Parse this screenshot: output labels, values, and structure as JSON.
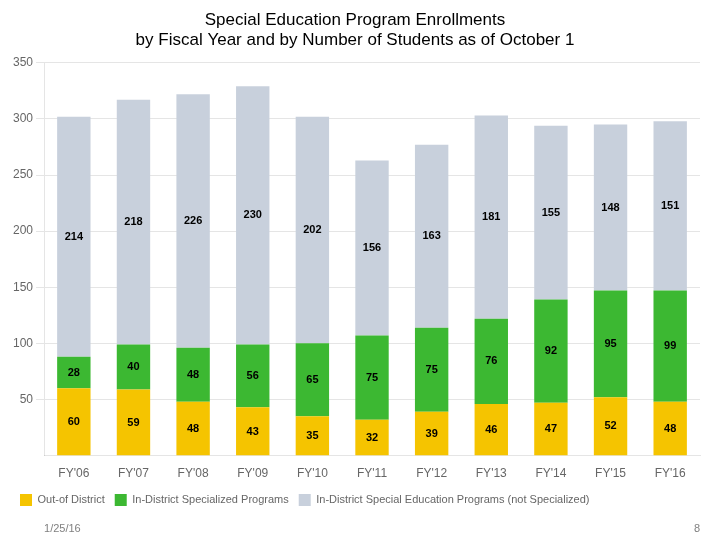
{
  "chart_data": {
    "type": "bar",
    "title": "Special Education Program Enrollments\nby Fiscal Year and by Number of Students as of October 1",
    "categories": [
      "FY'06",
      "FY'07",
      "FY'08",
      "FY'09",
      "FY'10",
      "FY'11",
      "FY'12",
      "FY'13",
      "FY'14",
      "FY'15",
      "FY'16"
    ],
    "series": [
      {
        "name": "Out-of District",
        "color": "#F5C400",
        "values": [
          60,
          59,
          48,
          43,
          35,
          32,
          39,
          46,
          47,
          52,
          48
        ]
      },
      {
        "name": "In-District Specialized Programs",
        "color": "#3CB832",
        "values": [
          28,
          40,
          48,
          56,
          65,
          75,
          75,
          76,
          92,
          95,
          99
        ]
      },
      {
        "name": "In-District Special Education Programs (not Specialized)",
        "color": "#C8D0DC",
        "values": [
          214,
          218,
          226,
          230,
          202,
          156,
          163,
          181,
          155,
          148,
          151
        ]
      }
    ],
    "stacked": true,
    "ylim": [
      0,
      350
    ],
    "yticks": [
      50,
      100,
      150,
      200,
      250,
      300,
      350
    ],
    "grid": true,
    "legend": "bottom",
    "data_labels": true,
    "annotations": [
      "1/25/16",
      "8"
    ]
  }
}
